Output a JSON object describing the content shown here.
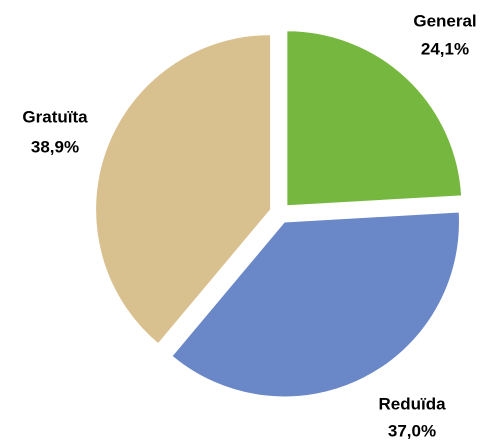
{
  "chart_data": {
    "type": "pie",
    "categories": [
      "General",
      "Reduïda",
      "Gratuïta"
    ],
    "values": [
      24.1,
      37.0,
      38.9
    ],
    "value_labels": [
      "24,1%",
      "37,0%",
      "38,9%"
    ],
    "colors": [
      "#76b83f",
      "#6a87c8",
      "#d9c08f"
    ]
  }
}
